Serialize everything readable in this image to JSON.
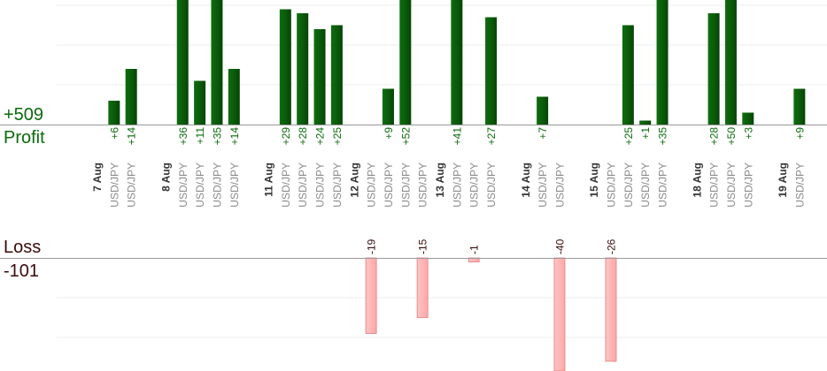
{
  "summary": {
    "profit_total": "+509",
    "profit_label": "Profit",
    "loss_label": "Loss",
    "loss_total": "-101"
  },
  "colors": {
    "profit_bar": "#0d620d",
    "profit_text": "#0a6a0a",
    "loss_bar": "#ffb6b6",
    "loss_bar_edge": "#e07b7b",
    "loss_text": "#3a0a0a",
    "symbol_text": "#8a8a8a",
    "date_text": "#333333",
    "axis": "#999999",
    "grid": "#ececec"
  },
  "chart_data": {
    "type": "bar",
    "profit_ylim": [
      0,
      30
    ],
    "loss_ylim": [
      0,
      30
    ],
    "x_labels": [
      {
        "kind": "date",
        "text": "7 Aug",
        "slot": 0
      },
      {
        "kind": "trade",
        "text": "USD/JPY",
        "slot": 1,
        "value": 6,
        "label": "+6"
      },
      {
        "kind": "trade",
        "text": "USD/JPY",
        "slot": 2,
        "value": 14,
        "label": "+14"
      },
      {
        "kind": "date",
        "text": "8 Aug",
        "slot": 4
      },
      {
        "kind": "trade",
        "text": "USD/JPY",
        "slot": 5,
        "value": 36,
        "label": "+36"
      },
      {
        "kind": "trade",
        "text": "USD/JPY",
        "slot": 6,
        "value": 11,
        "label": "+11"
      },
      {
        "kind": "trade",
        "text": "USD/JPY",
        "slot": 7,
        "value": 35,
        "label": "+35"
      },
      {
        "kind": "trade",
        "text": "USD/JPY",
        "slot": 8,
        "value": 14,
        "label": "+14"
      },
      {
        "kind": "date",
        "text": "11 Aug",
        "slot": 10
      },
      {
        "kind": "trade",
        "text": "USD/JPY",
        "slot": 11,
        "value": 29,
        "label": "+29"
      },
      {
        "kind": "trade",
        "text": "USD/JPY",
        "slot": 12,
        "value": 28,
        "label": "+28"
      },
      {
        "kind": "trade",
        "text": "USD/JPY",
        "slot": 13,
        "value": 24,
        "label": "+24"
      },
      {
        "kind": "trade",
        "text": "USD/JPY",
        "slot": 14,
        "value": 25,
        "label": "+25"
      },
      {
        "kind": "date",
        "text": "12 Aug",
        "slot": 15
      },
      {
        "kind": "trade",
        "text": "USD/JPY",
        "slot": 16,
        "value": -19,
        "label": "-19"
      },
      {
        "kind": "trade",
        "text": "USD/JPY",
        "slot": 17,
        "value": 9,
        "label": "+9"
      },
      {
        "kind": "trade",
        "text": "USD/JPY",
        "slot": 18,
        "value": 52,
        "label": "+52"
      },
      {
        "kind": "trade",
        "text": "USD/JPY",
        "slot": 19,
        "value": -15,
        "label": "-15"
      },
      {
        "kind": "date",
        "text": "13 Aug",
        "slot": 20
      },
      {
        "kind": "trade",
        "text": "USD/JPY",
        "slot": 21,
        "value": 41,
        "label": "+41"
      },
      {
        "kind": "trade",
        "text": "USD/JPY",
        "slot": 22,
        "value": -1,
        "label": "-1"
      },
      {
        "kind": "trade",
        "text": "USD/JPY",
        "slot": 23,
        "value": 27,
        "label": "+27"
      },
      {
        "kind": "date",
        "text": "14 Aug",
        "slot": 25
      },
      {
        "kind": "trade",
        "text": "USD/JPY",
        "slot": 26,
        "value": 7,
        "label": "+7"
      },
      {
        "kind": "trade",
        "text": "USD/JPY",
        "slot": 27,
        "value": -40,
        "label": "-40"
      },
      {
        "kind": "date",
        "text": "15 Aug",
        "slot": 29
      },
      {
        "kind": "trade",
        "text": "USD/JPY",
        "slot": 30,
        "value": -26,
        "label": "-26"
      },
      {
        "kind": "trade",
        "text": "USD/JPY",
        "slot": 31,
        "value": 25,
        "label": "+25"
      },
      {
        "kind": "trade",
        "text": "USD/JPY",
        "slot": 32,
        "value": 1,
        "label": "+1"
      },
      {
        "kind": "trade",
        "text": "USD/JPY",
        "slot": 33,
        "value": 35,
        "label": "+35"
      },
      {
        "kind": "date",
        "text": "18 Aug",
        "slot": 35
      },
      {
        "kind": "trade",
        "text": "USD/JPY",
        "slot": 36,
        "value": 28,
        "label": "+28"
      },
      {
        "kind": "trade",
        "text": "USD/JPY",
        "slot": 37,
        "value": 50,
        "label": "+50"
      },
      {
        "kind": "trade",
        "text": "USD/JPY",
        "slot": 38,
        "value": 3,
        "label": "+3"
      },
      {
        "kind": "date",
        "text": "19 Aug",
        "slot": 40
      },
      {
        "kind": "trade",
        "text": "USD/JPY",
        "slot": 41,
        "value": 9,
        "label": "+9"
      }
    ]
  }
}
